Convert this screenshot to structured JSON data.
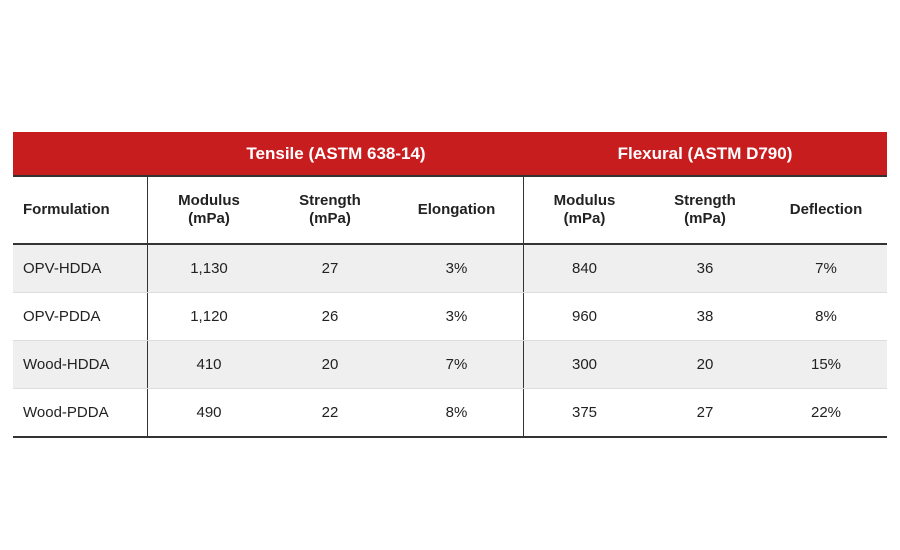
{
  "groups": {
    "tensile": "Tensile (ASTM 638-14)",
    "flexural": "Flexural (ASTM D790)"
  },
  "columns": [
    "Formulation",
    "Modulus (mPa)",
    "Strength (mPa)",
    "Elongation",
    "Modulus (mPa)",
    "Strength (mPa)",
    "Deflection"
  ],
  "rows": [
    [
      "OPV-HDDA",
      "1,130",
      "27",
      "3%",
      "840",
      "36",
      "7%"
    ],
    [
      "OPV-PDDA",
      "1,120",
      "26",
      "3%",
      "960",
      "38",
      "8%"
    ],
    [
      "Wood-HDDA",
      "410",
      "20",
      "7%",
      "300",
      "20",
      "15%"
    ],
    [
      "Wood-PDDA",
      "490",
      "22",
      "8%",
      "375",
      "27",
      "22%"
    ]
  ],
  "colors": {
    "header_red": "#c81d1f",
    "stripe": "#efefef"
  }
}
